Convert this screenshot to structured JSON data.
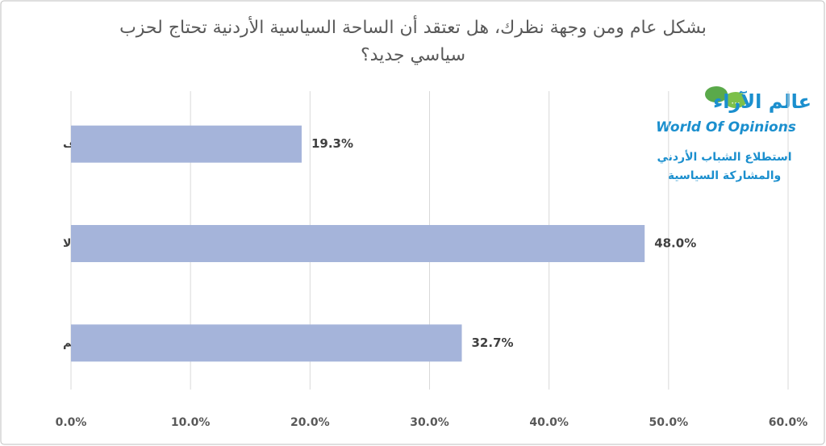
{
  "chart_data": {
    "type": "bar",
    "orientation": "horizontal",
    "title": "بشكل عام ومن وجهة نظرك، هل تعتقد أن الساحة السياسية الأردنية تحتاج لحزب سياسي جديد؟",
    "categories": [
      "لا أعرف",
      "لا",
      "نعم"
    ],
    "values": [
      19.3,
      48.0,
      32.7
    ],
    "value_labels": [
      "19.3%",
      "48.0%",
      "32.7%"
    ],
    "color": "#a5b4da",
    "xlim": [
      0,
      60
    ],
    "xticks": [
      {
        "value": 0,
        "label": "0.0%"
      },
      {
        "value": 10,
        "label": "10.0%"
      },
      {
        "value": 20,
        "label": "20.0%"
      },
      {
        "value": 30,
        "label": "30.0%"
      },
      {
        "value": 40,
        "label": "40.0%"
      },
      {
        "value": 50,
        "label": "50.0%"
      },
      {
        "value": 60,
        "label": "60.0%"
      }
    ],
    "grid": true,
    "logo": {
      "name_ar": "عالم الآراء",
      "name_en": "World Of Opinions",
      "line1": "استطلاع الشباب الأردني",
      "line2": "والمشاركة السياسية"
    }
  }
}
